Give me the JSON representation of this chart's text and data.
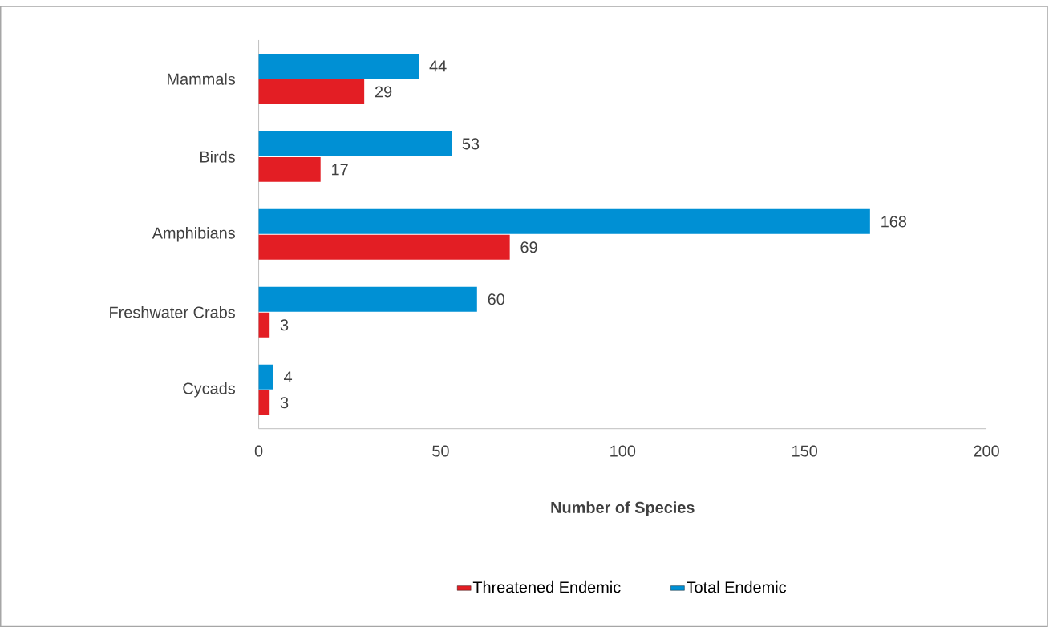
{
  "chart_data": {
    "type": "bar",
    "orientation": "horizontal",
    "xlabel": "Number of Species",
    "categories": [
      "Mammals",
      "Birds",
      "Amphibians",
      "Freshwater Crabs",
      "Cycads"
    ],
    "series": [
      {
        "name": "Threatened Endemic",
        "color": "#e31e24",
        "values": [
          29,
          17,
          69,
          3,
          3
        ]
      },
      {
        "name": "Total Endemic",
        "color": "#0090d4",
        "values": [
          44,
          53,
          168,
          60,
          4
        ]
      }
    ],
    "xlim": [
      0,
      200
    ],
    "xticks": [
      0,
      50,
      100,
      150,
      200
    ],
    "data_labels": true,
    "legend": "bottom"
  }
}
